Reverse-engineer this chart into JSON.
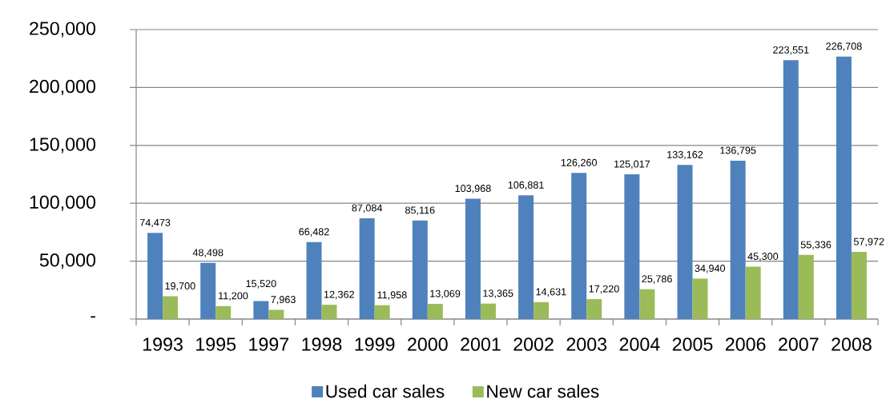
{
  "chart_data": {
    "type": "bar",
    "categories": [
      "1993",
      "1995",
      "1997",
      "1998",
      "1999",
      "2000",
      "2001",
      "2002",
      "2003",
      "2004",
      "2005",
      "2006",
      "2007",
      "2008"
    ],
    "series": [
      {
        "name": "Used car sales",
        "color": "#4f81bd",
        "values": [
          74473,
          48498,
          15520,
          66482,
          87084,
          85116,
          103968,
          106881,
          126260,
          125017,
          133162,
          136795,
          223551,
          226708
        ],
        "value_labels": [
          "74,473",
          "48,498",
          "15,520",
          "66,482",
          "87,084",
          "85,116",
          "103,968",
          "106,881",
          "126,260",
          "125,017",
          "133,162",
          "136,795",
          "223,551",
          "226,708"
        ]
      },
      {
        "name": "New car sales",
        "color": "#9bbb59",
        "values": [
          19700,
          11200,
          7963,
          12362,
          11958,
          13069,
          13365,
          14631,
          17220,
          25786,
          34940,
          45300,
          55336,
          57972
        ],
        "value_labels": [
          "19,700",
          "11,200",
          "7,963",
          "12,362",
          "11,958",
          "13,069",
          "13,365",
          "14,631",
          "17,220",
          "25,786",
          "34,940",
          "45,300",
          "55,336",
          "57,972"
        ]
      }
    ],
    "ylim": [
      0,
      250000
    ],
    "yticks": [
      {
        "value": 0,
        "label": "-"
      },
      {
        "value": 50000,
        "label": "50,000"
      },
      {
        "value": 100000,
        "label": "100,000"
      },
      {
        "value": 150000,
        "label": "150,000"
      },
      {
        "value": 200000,
        "label": "200,000"
      },
      {
        "value": 250000,
        "label": "250,000"
      }
    ],
    "grid": "y",
    "legend": "bottom"
  }
}
